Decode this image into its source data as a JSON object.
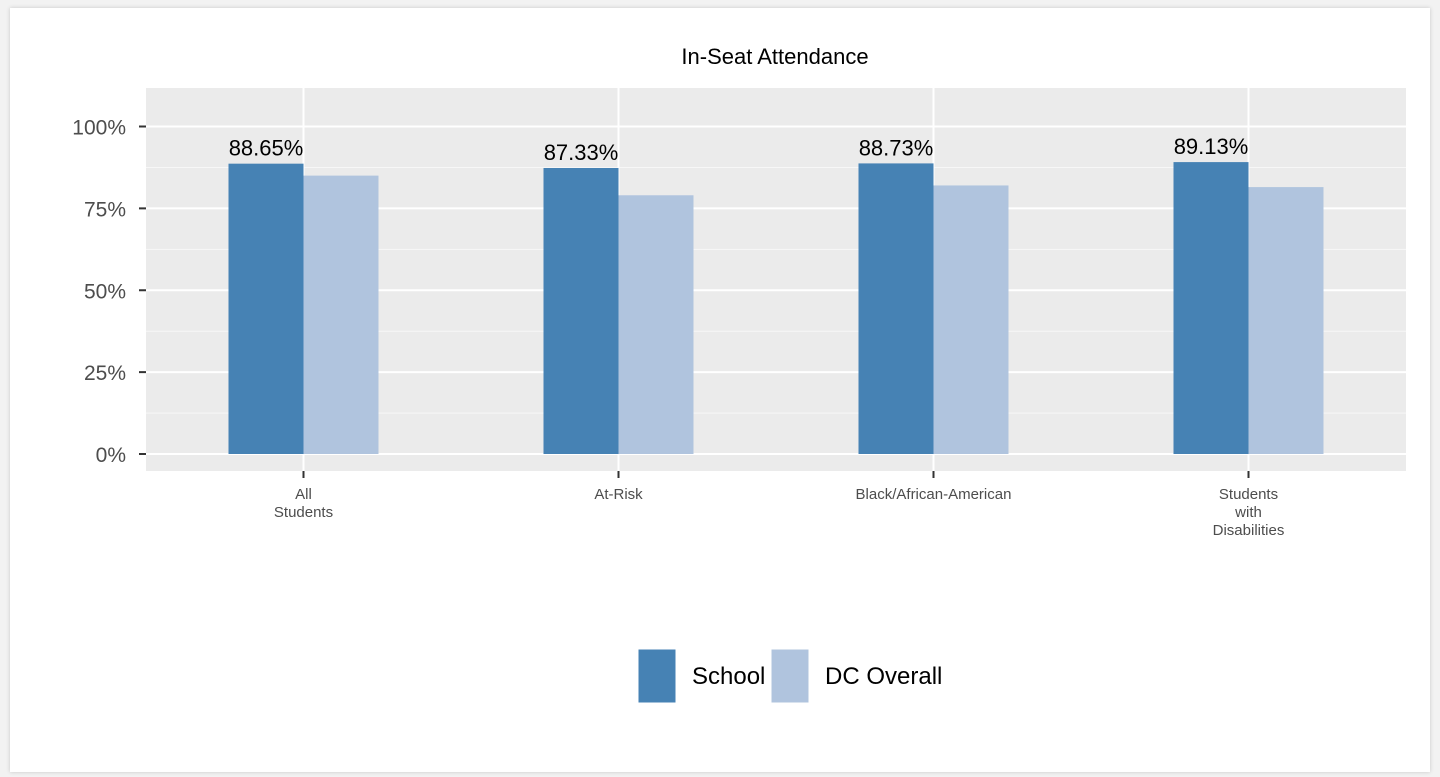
{
  "chart_data": {
    "type": "bar",
    "title": "In-Seat Attendance",
    "xlabel": "",
    "ylabel": "",
    "categories": [
      [
        "All",
        "Students"
      ],
      [
        "At-Risk"
      ],
      [
        "Black/African-American"
      ],
      [
        "Students",
        "with",
        "Disabilities"
      ]
    ],
    "series": [
      {
        "name": "School",
        "color": "#4682b4",
        "values": [
          88.65,
          87.33,
          88.73,
          89.13
        ]
      },
      {
        "name": "DC Overall",
        "color": "#b0c4de",
        "values": [
          85.0,
          79.0,
          82.0,
          81.5
        ]
      }
    ],
    "data_labels": [
      "88.65%",
      "87.33%",
      "88.73%",
      "89.13%"
    ],
    "ylim": [
      0,
      100
    ],
    "yticks": [
      0,
      25,
      50,
      75,
      100
    ],
    "ytick_labels": [
      "0%",
      "25%",
      "50%",
      "75%",
      "100%"
    ],
    "grid": true,
    "legend_position": "bottom"
  }
}
